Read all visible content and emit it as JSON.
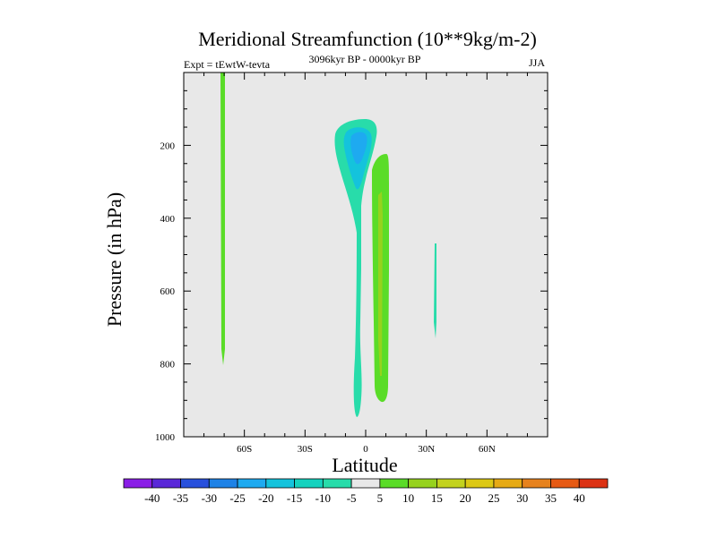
{
  "chart_data": {
    "type": "contour",
    "title": "Meridional Streamfunction (10**9kg/m-2)",
    "left_label": "Expt = tEwtW-tevta",
    "center_label": "3096kyr BP - 0000kyr BP",
    "right_label": "JJA",
    "xlabel": "Latitude",
    "ylabel": "Pressure (in hPa)",
    "xlim": [
      -90,
      90
    ],
    "ylim": [
      1000,
      0
    ],
    "x_ticks": [
      {
        "value": -60,
        "label": "60S"
      },
      {
        "value": -30,
        "label": "30S"
      },
      {
        "value": 0,
        "label": "0"
      },
      {
        "value": 30,
        "label": "30N"
      },
      {
        "value": 60,
        "label": "60N"
      }
    ],
    "y_ticks": [
      {
        "value": 200,
        "label": "200"
      },
      {
        "value": 400,
        "label": "400"
      },
      {
        "value": 600,
        "label": "600"
      },
      {
        "value": 800,
        "label": "800"
      },
      {
        "value": 1000,
        "label": "1000"
      }
    ],
    "background_color": "#e8e8e8",
    "colorbar": {
      "labels": [
        "-40",
        "-35",
        "-30",
        "-25",
        "-20",
        "-15",
        "-10",
        "-5",
        "5",
        "10",
        "15",
        "20",
        "25",
        "30",
        "35",
        "40"
      ],
      "colors": [
        "#8a1ee6",
        "#5a28d8",
        "#2850dc",
        "#1e82e6",
        "#1eaaf0",
        "#14c3dc",
        "#14d2be",
        "#28dcaa",
        "#e8e8e8",
        "#5adc28",
        "#96d21e",
        "#c3d21e",
        "#dcc814",
        "#e6aa14",
        "#e6821e",
        "#e65a14",
        "#dc3214"
      ]
    },
    "features": [
      {
        "name": "-10 cell upper tropics",
        "level": -10,
        "lat_range": [
          -16,
          3
        ],
        "p_range": [
          130,
          340
        ],
        "color": "#28dcaa"
      },
      {
        "name": "-15 core",
        "level": -15,
        "lat_range": [
          -12,
          2
        ],
        "p_range": [
          150,
          260
        ],
        "color": "#14c3dc"
      },
      {
        "name": "-20 core",
        "level": -20,
        "lat_range": [
          -9,
          -3
        ],
        "p_range": [
          160,
          210
        ],
        "color": "#1eaaf0"
      },
      {
        "name": "-10 column",
        "level": -10,
        "lat_range": [
          -5,
          0
        ],
        "p_range": [
          340,
          950
        ],
        "color": "#28dcaa"
      },
      {
        "name": "+10 column",
        "level": 10,
        "lat_range": [
          4,
          12
        ],
        "p_range": [
          220,
          900
        ],
        "color": "#5adc28"
      },
      {
        "name": "+15 strip",
        "level": 15,
        "lat_range": [
          6,
          8
        ],
        "p_range": [
          330,
          840
        ],
        "color": "#96d21e"
      },
      {
        "name": "+10 strip 70S",
        "level": 10,
        "lat_range": [
          -71,
          -69
        ],
        "p_range": [
          0,
          800
        ],
        "color": "#5adc28"
      },
      {
        "name": "-10 strip 35N",
        "level": -10,
        "lat_range": [
          34,
          36
        ],
        "p_range": [
          470,
          720
        ],
        "color": "#28dcaa"
      }
    ]
  }
}
